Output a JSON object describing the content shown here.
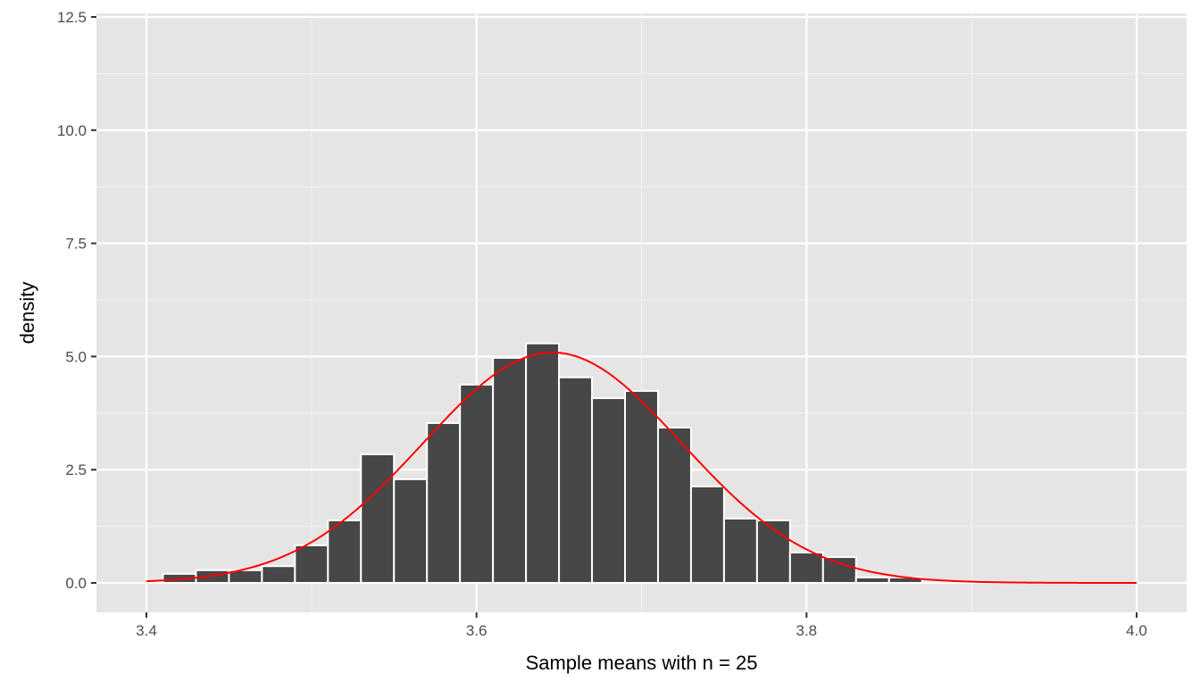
{
  "chart_data": {
    "type": "bar",
    "subtype": "histogram_with_normal_curve",
    "title": "",
    "xlabel": "Sample means with n = 25",
    "ylabel": "density",
    "xlim": [
      3.37,
      4.03
    ],
    "ylim": [
      -0.65,
      12.7
    ],
    "x_ticks": [
      3.4,
      3.6,
      3.8,
      4.0
    ],
    "x_tick_labels": [
      "3.4",
      "3.6",
      "3.8",
      "4.0"
    ],
    "x_minor_grid": [
      3.5,
      3.7,
      3.9
    ],
    "y_ticks": [
      0.0,
      2.5,
      5.0,
      7.5,
      10.0,
      12.5
    ],
    "y_tick_labels": [
      "0.0",
      "2.5",
      "5.0",
      "7.5",
      "10.0",
      "12.5"
    ],
    "y_minor_grid": [
      1.25,
      3.75,
      6.25,
      8.75,
      11.25
    ],
    "grid": true,
    "legend": "none",
    "bin_width": 0.02,
    "bins": [
      {
        "x0": 3.41,
        "x1": 3.43,
        "density": 0.2
      },
      {
        "x0": 3.43,
        "x1": 3.45,
        "density": 0.28
      },
      {
        "x0": 3.45,
        "x1": 3.47,
        "density": 0.28
      },
      {
        "x0": 3.47,
        "x1": 3.49,
        "density": 0.37
      },
      {
        "x0": 3.49,
        "x1": 3.51,
        "density": 0.83
      },
      {
        "x0": 3.51,
        "x1": 3.53,
        "density": 1.38
      },
      {
        "x0": 3.53,
        "x1": 3.55,
        "density": 2.84
      },
      {
        "x0": 3.55,
        "x1": 3.57,
        "density": 2.29
      },
      {
        "x0": 3.57,
        "x1": 3.59,
        "density": 3.53
      },
      {
        "x0": 3.59,
        "x1": 3.61,
        "density": 4.38
      },
      {
        "x0": 3.61,
        "x1": 3.63,
        "density": 4.97
      },
      {
        "x0": 3.63,
        "x1": 3.65,
        "density": 5.29
      },
      {
        "x0": 3.65,
        "x1": 3.67,
        "density": 4.54
      },
      {
        "x0": 3.67,
        "x1": 3.69,
        "density": 4.08
      },
      {
        "x0": 3.69,
        "x1": 3.71,
        "density": 4.24
      },
      {
        "x0": 3.71,
        "x1": 3.73,
        "density": 3.43
      },
      {
        "x0": 3.73,
        "x1": 3.75,
        "density": 2.13
      },
      {
        "x0": 3.75,
        "x1": 3.77,
        "density": 1.42
      },
      {
        "x0": 3.77,
        "x1": 3.79,
        "density": 1.38
      },
      {
        "x0": 3.79,
        "x1": 3.81,
        "density": 0.67
      },
      {
        "x0": 3.81,
        "x1": 3.83,
        "density": 0.57
      },
      {
        "x0": 3.83,
        "x1": 3.85,
        "density": 0.12
      },
      {
        "x0": 3.85,
        "x1": 3.87,
        "density": 0.12
      }
    ],
    "normal_curve": {
      "name": "normal density",
      "mean": 3.646,
      "sd": 0.0784,
      "x_range": [
        3.4,
        4.0
      ],
      "peak_density": 5.09
    },
    "colors": {
      "panel_background": "#E5E5E5",
      "grid_major": "#FFFFFF",
      "grid_minor": "#F2F2F2",
      "bar_fill": "#474747",
      "bar_outline": "#FFFFFF",
      "curve": "#FF0000",
      "tick_text": "#4D4D4D",
      "axis_title": "#000000",
      "tick_mark": "#333333"
    }
  }
}
